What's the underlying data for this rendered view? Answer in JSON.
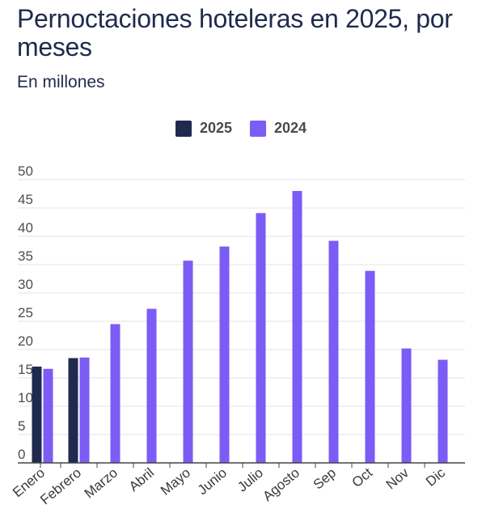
{
  "title": "Pernoctaciones hoteleras en 2025, por meses",
  "subtitle": "En millones",
  "colors": {
    "2025": "#1f2a50",
    "2024": "#7b5cf5",
    "grid": "#e3e3e3",
    "axis": "#444444"
  },
  "chart_data": {
    "type": "bar",
    "title": "Pernoctaciones hoteleras en 2025, por meses",
    "subtitle": "En millones",
    "categories": [
      "Enero",
      "Febrero",
      "Marzo",
      "Abril",
      "Mayo",
      "Junio",
      "Julio",
      "Agosto",
      "Sep",
      "Oct",
      "Nov",
      "Dic"
    ],
    "series": [
      {
        "name": "2025",
        "values": [
          17.0,
          18.5,
          null,
          null,
          null,
          null,
          null,
          null,
          null,
          null,
          null,
          null
        ]
      },
      {
        "name": "2024",
        "values": [
          16.6,
          18.6,
          24.5,
          27.2,
          35.7,
          38.2,
          44.1,
          48.0,
          39.2,
          33.9,
          20.2,
          18.2
        ]
      }
    ],
    "ylim": [
      0,
      50
    ],
    "yticks": [
      0,
      5,
      10,
      15,
      20,
      25,
      30,
      35,
      40,
      45,
      50
    ],
    "legend": "top-center",
    "grid": true
  }
}
